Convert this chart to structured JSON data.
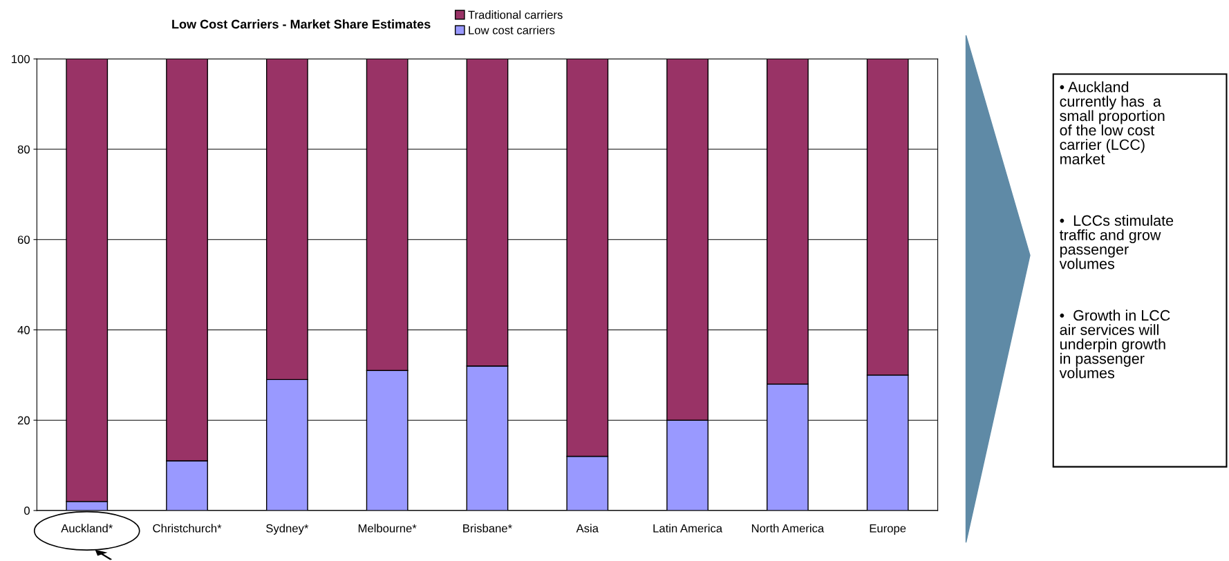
{
  "chart_data": {
    "type": "bar",
    "title": "Low Cost Carriers - Market Share Estimates",
    "stacked": true,
    "categories": [
      "Auckland*",
      "Christchurch*",
      "Sydney*",
      "Melbourne*",
      "Brisbane*",
      "Asia",
      "Latin America",
      "North America",
      "Europe"
    ],
    "series": [
      {
        "name": "Low cost carriers",
        "color": "#9999ff",
        "values": [
          2,
          11,
          29,
          31,
          32,
          12,
          20,
          28,
          30
        ]
      },
      {
        "name": "Traditional carriers",
        "color": "#993366",
        "values": [
          98,
          89,
          71,
          69,
          68,
          88,
          80,
          72,
          70
        ]
      }
    ],
    "ylim": [
      0,
      100
    ],
    "yticks": [
      0,
      20,
      40,
      60,
      80,
      100
    ],
    "grid": "y",
    "legend": "top right",
    "annotations": [
      "• Auckland\ncurrently has  a\nsmall proportion\nof the low cost\ncarrier (LCC)\nmarket",
      "•  LCCs stimulate\ntraffic and grow\npassenger\nvolumes",
      "•  Growth in LCC\nair services will\nunderpin growth\nin passenger\nvolumes"
    ]
  }
}
